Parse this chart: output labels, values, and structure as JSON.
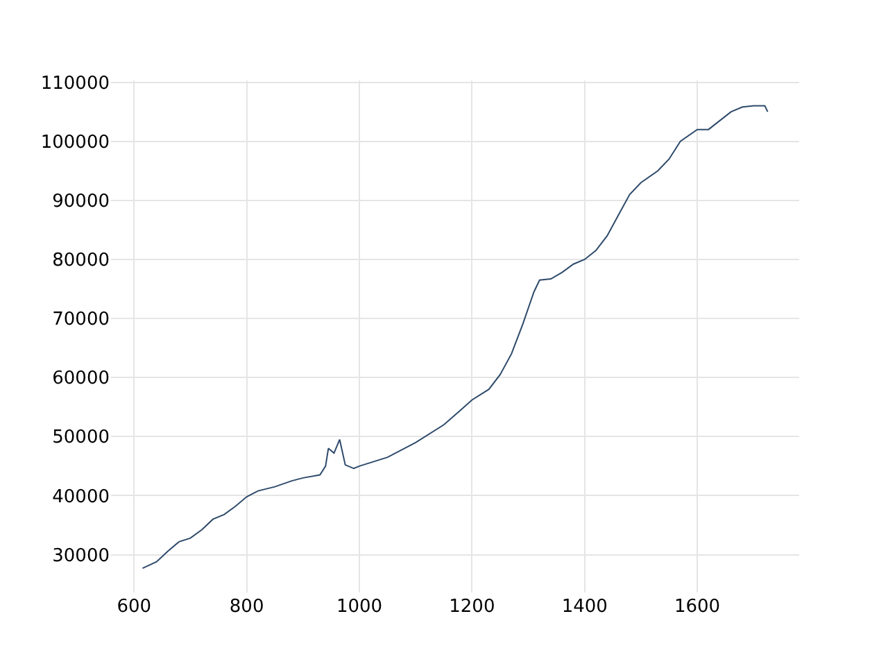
{
  "chart_data": {
    "type": "line",
    "x": [
      615,
      640,
      660,
      680,
      700,
      720,
      740,
      760,
      780,
      800,
      820,
      850,
      880,
      900,
      930,
      940,
      945,
      955,
      965,
      975,
      990,
      1000,
      1050,
      1100,
      1150,
      1180,
      1200,
      1230,
      1250,
      1270,
      1290,
      1310,
      1320,
      1340,
      1360,
      1380,
      1400,
      1420,
      1440,
      1460,
      1480,
      1500,
      1530,
      1550,
      1570,
      1600,
      1620,
      1640,
      1660,
      1680,
      1700,
      1720,
      1725
    ],
    "series": [
      {
        "color": "#2e4a6b",
        "values": [
          27700,
          28800,
          30600,
          32200,
          32800,
          34200,
          36000,
          36800,
          38200,
          39800,
          40800,
          41500,
          42500,
          43000,
          43500,
          45000,
          48000,
          47200,
          49500,
          45200,
          44600,
          45000,
          46500,
          49000,
          52000,
          54500,
          56200,
          58000,
          60500,
          64000,
          69000,
          74500,
          76500,
          76700,
          77800,
          79200,
          80000,
          81500,
          84000,
          87500,
          91000,
          93000,
          95000,
          97000,
          100000,
          102000,
          102000,
          103500,
          105000,
          105800,
          106000,
          106000,
          105000
        ]
      }
    ],
    "xlim": [
      559,
      1781
    ],
    "xticks": [
      600,
      800,
      1000,
      1200,
      1400,
      1600
    ],
    "ylim": [
      23600,
      110300
    ],
    "yticks": [
      30000,
      40000,
      50000,
      60000,
      70000,
      80000,
      90000,
      100000,
      110000
    ],
    "grid": true,
    "legend": false,
    "marker": "none",
    "line_style": "solid"
  }
}
